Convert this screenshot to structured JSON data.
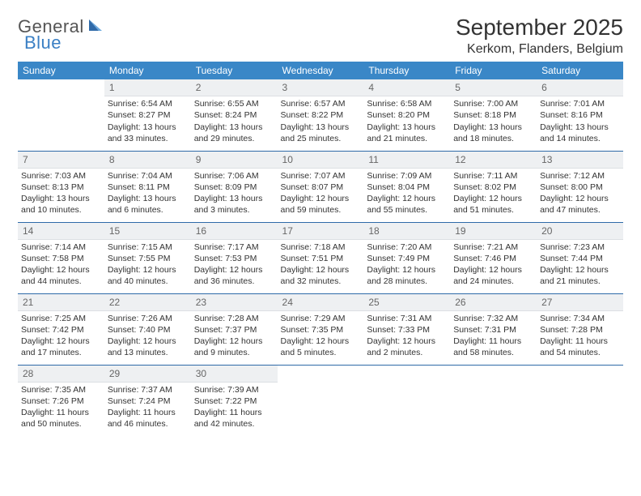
{
  "header": {
    "logo_general": "General",
    "logo_blue": "Blue",
    "month_title": "September 2025",
    "location": "Kerkom, Flanders, Belgium"
  },
  "colors": {
    "header_bg": "#3a87c7",
    "header_text": "#ffffff",
    "daynum_bg": "#eef0f2",
    "row_separator": "#2f6aa8",
    "logo_blue": "#3a7fc4",
    "body_text": "#333333",
    "page_bg": "#ffffff"
  },
  "weekdays": [
    "Sunday",
    "Monday",
    "Tuesday",
    "Wednesday",
    "Thursday",
    "Friday",
    "Saturday"
  ],
  "weeks": [
    [
      {
        "day": "",
        "sunrise": "",
        "sunset": "",
        "daylight": "",
        "empty": true
      },
      {
        "day": "1",
        "sunrise": "Sunrise: 6:54 AM",
        "sunset": "Sunset: 8:27 PM",
        "daylight": "Daylight: 13 hours and 33 minutes."
      },
      {
        "day": "2",
        "sunrise": "Sunrise: 6:55 AM",
        "sunset": "Sunset: 8:24 PM",
        "daylight": "Daylight: 13 hours and 29 minutes."
      },
      {
        "day": "3",
        "sunrise": "Sunrise: 6:57 AM",
        "sunset": "Sunset: 8:22 PM",
        "daylight": "Daylight: 13 hours and 25 minutes."
      },
      {
        "day": "4",
        "sunrise": "Sunrise: 6:58 AM",
        "sunset": "Sunset: 8:20 PM",
        "daylight": "Daylight: 13 hours and 21 minutes."
      },
      {
        "day": "5",
        "sunrise": "Sunrise: 7:00 AM",
        "sunset": "Sunset: 8:18 PM",
        "daylight": "Daylight: 13 hours and 18 minutes."
      },
      {
        "day": "6",
        "sunrise": "Sunrise: 7:01 AM",
        "sunset": "Sunset: 8:16 PM",
        "daylight": "Daylight: 13 hours and 14 minutes."
      }
    ],
    [
      {
        "day": "7",
        "sunrise": "Sunrise: 7:03 AM",
        "sunset": "Sunset: 8:13 PM",
        "daylight": "Daylight: 13 hours and 10 minutes."
      },
      {
        "day": "8",
        "sunrise": "Sunrise: 7:04 AM",
        "sunset": "Sunset: 8:11 PM",
        "daylight": "Daylight: 13 hours and 6 minutes."
      },
      {
        "day": "9",
        "sunrise": "Sunrise: 7:06 AM",
        "sunset": "Sunset: 8:09 PM",
        "daylight": "Daylight: 13 hours and 3 minutes."
      },
      {
        "day": "10",
        "sunrise": "Sunrise: 7:07 AM",
        "sunset": "Sunset: 8:07 PM",
        "daylight": "Daylight: 12 hours and 59 minutes."
      },
      {
        "day": "11",
        "sunrise": "Sunrise: 7:09 AM",
        "sunset": "Sunset: 8:04 PM",
        "daylight": "Daylight: 12 hours and 55 minutes."
      },
      {
        "day": "12",
        "sunrise": "Sunrise: 7:11 AM",
        "sunset": "Sunset: 8:02 PM",
        "daylight": "Daylight: 12 hours and 51 minutes."
      },
      {
        "day": "13",
        "sunrise": "Sunrise: 7:12 AM",
        "sunset": "Sunset: 8:00 PM",
        "daylight": "Daylight: 12 hours and 47 minutes."
      }
    ],
    [
      {
        "day": "14",
        "sunrise": "Sunrise: 7:14 AM",
        "sunset": "Sunset: 7:58 PM",
        "daylight": "Daylight: 12 hours and 44 minutes."
      },
      {
        "day": "15",
        "sunrise": "Sunrise: 7:15 AM",
        "sunset": "Sunset: 7:55 PM",
        "daylight": "Daylight: 12 hours and 40 minutes."
      },
      {
        "day": "16",
        "sunrise": "Sunrise: 7:17 AM",
        "sunset": "Sunset: 7:53 PM",
        "daylight": "Daylight: 12 hours and 36 minutes."
      },
      {
        "day": "17",
        "sunrise": "Sunrise: 7:18 AM",
        "sunset": "Sunset: 7:51 PM",
        "daylight": "Daylight: 12 hours and 32 minutes."
      },
      {
        "day": "18",
        "sunrise": "Sunrise: 7:20 AM",
        "sunset": "Sunset: 7:49 PM",
        "daylight": "Daylight: 12 hours and 28 minutes."
      },
      {
        "day": "19",
        "sunrise": "Sunrise: 7:21 AM",
        "sunset": "Sunset: 7:46 PM",
        "daylight": "Daylight: 12 hours and 24 minutes."
      },
      {
        "day": "20",
        "sunrise": "Sunrise: 7:23 AM",
        "sunset": "Sunset: 7:44 PM",
        "daylight": "Daylight: 12 hours and 21 minutes."
      }
    ],
    [
      {
        "day": "21",
        "sunrise": "Sunrise: 7:25 AM",
        "sunset": "Sunset: 7:42 PM",
        "daylight": "Daylight: 12 hours and 17 minutes."
      },
      {
        "day": "22",
        "sunrise": "Sunrise: 7:26 AM",
        "sunset": "Sunset: 7:40 PM",
        "daylight": "Daylight: 12 hours and 13 minutes."
      },
      {
        "day": "23",
        "sunrise": "Sunrise: 7:28 AM",
        "sunset": "Sunset: 7:37 PM",
        "daylight": "Daylight: 12 hours and 9 minutes."
      },
      {
        "day": "24",
        "sunrise": "Sunrise: 7:29 AM",
        "sunset": "Sunset: 7:35 PM",
        "daylight": "Daylight: 12 hours and 5 minutes."
      },
      {
        "day": "25",
        "sunrise": "Sunrise: 7:31 AM",
        "sunset": "Sunset: 7:33 PM",
        "daylight": "Daylight: 12 hours and 2 minutes."
      },
      {
        "day": "26",
        "sunrise": "Sunrise: 7:32 AM",
        "sunset": "Sunset: 7:31 PM",
        "daylight": "Daylight: 11 hours and 58 minutes."
      },
      {
        "day": "27",
        "sunrise": "Sunrise: 7:34 AM",
        "sunset": "Sunset: 7:28 PM",
        "daylight": "Daylight: 11 hours and 54 minutes."
      }
    ],
    [
      {
        "day": "28",
        "sunrise": "Sunrise: 7:35 AM",
        "sunset": "Sunset: 7:26 PM",
        "daylight": "Daylight: 11 hours and 50 minutes."
      },
      {
        "day": "29",
        "sunrise": "Sunrise: 7:37 AM",
        "sunset": "Sunset: 7:24 PM",
        "daylight": "Daylight: 11 hours and 46 minutes."
      },
      {
        "day": "30",
        "sunrise": "Sunrise: 7:39 AM",
        "sunset": "Sunset: 7:22 PM",
        "daylight": "Daylight: 11 hours and 42 minutes."
      },
      {
        "day": "",
        "sunrise": "",
        "sunset": "",
        "daylight": "",
        "empty": true
      },
      {
        "day": "",
        "sunrise": "",
        "sunset": "",
        "daylight": "",
        "empty": true
      },
      {
        "day": "",
        "sunrise": "",
        "sunset": "",
        "daylight": "",
        "empty": true
      },
      {
        "day": "",
        "sunrise": "",
        "sunset": "",
        "daylight": "",
        "empty": true
      }
    ]
  ]
}
